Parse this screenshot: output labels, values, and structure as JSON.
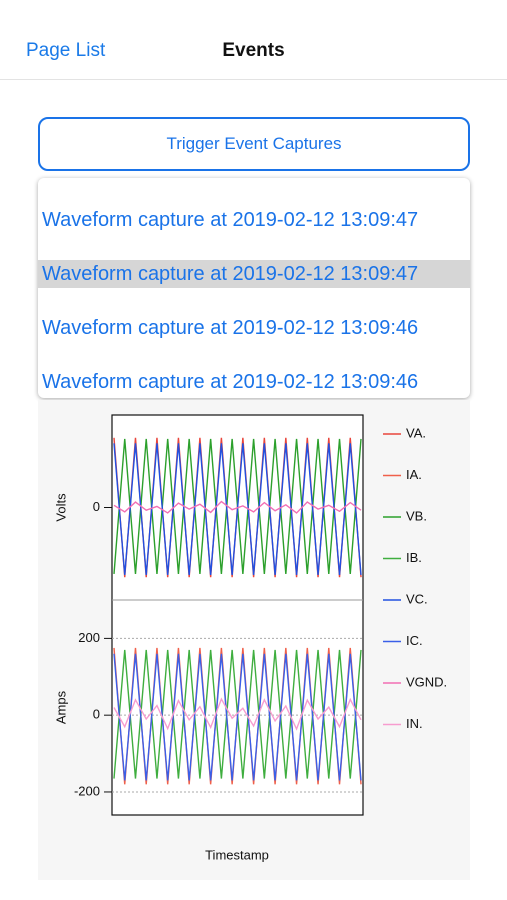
{
  "nav": {
    "back": "Page List",
    "title": "Events"
  },
  "button": {
    "label": "Trigger Event Captures"
  },
  "events": {
    "items": [
      "Waveform capture at 2019-02-12 13:09:47",
      "Waveform capture at 2019-02-12 13:09:47",
      "Waveform capture at 2019-02-12 13:09:46",
      "Waveform capture at 2019-02-12 13:09:46"
    ],
    "selected": 1
  },
  "chart_data": [
    {
      "type": "line",
      "y_label": "Volts",
      "ylim": [
        -170,
        170
      ],
      "yticks": [
        0
      ],
      "grid": false,
      "x": [
        0,
        1,
        2,
        3,
        4,
        5,
        6,
        7,
        8,
        9,
        10,
        11,
        12,
        13,
        14,
        15,
        16,
        17,
        18,
        19,
        20,
        21,
        22,
        23
      ],
      "xlim": [
        0,
        23
      ],
      "series": [
        {
          "name": "VA.",
          "color": "#e8453c",
          "values": [
            128,
            -128,
            128,
            -128,
            128,
            -128,
            128,
            -128,
            128,
            -128,
            128,
            -128,
            128,
            -128,
            128,
            -128,
            128,
            -128,
            128,
            -128,
            128,
            -128,
            128,
            -128
          ]
        },
        {
          "name": "VB.",
          "color": "#2ca02c",
          "values": [
            -122,
            126,
            -122,
            126,
            -122,
            126,
            -122,
            126,
            -122,
            126,
            -122,
            126,
            -122,
            126,
            -122,
            126,
            -122,
            126,
            -122,
            126,
            -122,
            126,
            -122,
            126
          ]
        },
        {
          "name": "VC.",
          "color": "#2150e0",
          "values": [
            118,
            -124,
            118,
            -124,
            118,
            -124,
            118,
            -124,
            118,
            -124,
            118,
            -124,
            118,
            -124,
            118,
            -124,
            118,
            -124,
            118,
            -124,
            118,
            -124,
            118,
            -124
          ]
        },
        {
          "name": "VGND.",
          "color": "#f26fb4",
          "values": [
            4,
            -8,
            10,
            -5,
            2,
            -10,
            8,
            -3,
            6,
            -9,
            11,
            -4,
            3,
            -8,
            9,
            -6,
            5,
            -10,
            10,
            -3,
            4,
            -7,
            9,
            -5
          ]
        }
      ]
    },
    {
      "type": "line",
      "y_label": "Amps",
      "x_label": "Timestamp",
      "ylim": [
        -260,
        300
      ],
      "yticks": [
        200,
        0,
        -200
      ],
      "grid": true,
      "x": [
        0,
        1,
        2,
        3,
        4,
        5,
        6,
        7,
        8,
        9,
        10,
        11,
        12,
        13,
        14,
        15,
        16,
        17,
        18,
        19,
        20,
        21,
        22,
        23
      ],
      "xlim": [
        0,
        23
      ],
      "series": [
        {
          "name": "IA.",
          "color": "#f0604a",
          "values": [
            175,
            -180,
            175,
            -180,
            175,
            -180,
            175,
            -180,
            175,
            -180,
            175,
            -180,
            175,
            -180,
            175,
            -180,
            175,
            -180,
            175,
            -180,
            175,
            -180,
            175,
            -180
          ]
        },
        {
          "name": "IB.",
          "color": "#3fae3f",
          "values": [
            -165,
            170,
            -165,
            170,
            -165,
            170,
            -165,
            170,
            -165,
            170,
            -165,
            170,
            -165,
            170,
            -165,
            170,
            -165,
            170,
            -165,
            170,
            -165,
            170,
            -165,
            170
          ]
        },
        {
          "name": "IC.",
          "color": "#3a5fe8",
          "values": [
            160,
            -170,
            160,
            -170,
            160,
            -170,
            160,
            -170,
            160,
            -170,
            160,
            -170,
            160,
            -170,
            160,
            -170,
            160,
            -170,
            160,
            -170,
            160,
            -170,
            160,
            -170
          ]
        },
        {
          "name": "IN.",
          "color": "#f79ccf",
          "values": [
            20,
            -30,
            40,
            -10,
            25,
            -35,
            38,
            -12,
            22,
            -32,
            42,
            -8,
            18,
            -28,
            40,
            -15,
            24,
            -36,
            39,
            -10,
            21,
            -30,
            41,
            -12
          ]
        }
      ]
    }
  ]
}
